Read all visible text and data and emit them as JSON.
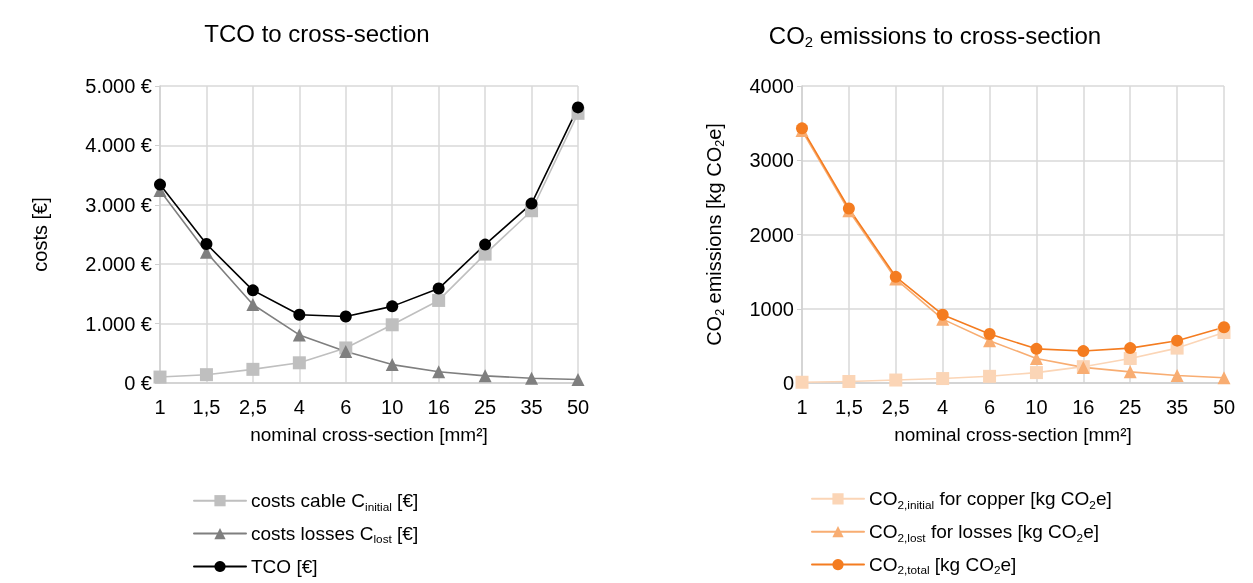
{
  "chart_data": [
    {
      "type": "line",
      "title": "TCO to cross-section",
      "xlabel": "nominal cross-section [mm²]",
      "ylabel": "costs [€]",
      "categories": [
        "1",
        "1,5",
        "2,5",
        "4",
        "6",
        "10",
        "16",
        "25",
        "35",
        "50"
      ],
      "series": [
        {
          "name": "costs cable C$_{initial}$ [€]",
          "color": "#bfbfbf",
          "marker": "square",
          "values": [
            100,
            140,
            230,
            340,
            590,
            980,
            1390,
            2170,
            2900,
            4540
          ]
        },
        {
          "name": "costs losses C$_{lost}$ [€]",
          "color": "#7f7f7f",
          "marker": "triangle",
          "values": [
            3240,
            2200,
            1320,
            810,
            530,
            310,
            190,
            120,
            80,
            60
          ]
        },
        {
          "name": "TCO [€]",
          "color": "#000000",
          "marker": "circle",
          "values": [
            3340,
            2340,
            1560,
            1150,
            1120,
            1290,
            1590,
            2330,
            3020,
            4640
          ]
        }
      ],
      "ylim": [
        0,
        5000
      ],
      "yticks": [
        {
          "value": 0,
          "label": "0 €"
        },
        {
          "value": 1000,
          "label": "1.000 €"
        },
        {
          "value": 2000,
          "label": "2.000 €"
        },
        {
          "value": 3000,
          "label": "3.000 €"
        },
        {
          "value": 4000,
          "label": "4.000 €"
        },
        {
          "value": 5000,
          "label": "5.000 €"
        }
      ],
      "grid": true,
      "legend": "bottom"
    },
    {
      "type": "line",
      "title": "CO$_{2}$ emissions to cross-section",
      "xlabel": "nominal cross-section [mm²]",
      "ylabel": "CO$_{2}$ emissions [kg CO$_{2}$e]",
      "categories": [
        "1",
        "1,5",
        "2,5",
        "4",
        "6",
        "10",
        "16",
        "25",
        "35",
        "50"
      ],
      "series": [
        {
          "name": "CO$_{2,initial}$ for copper [kg CO$_{2}$e]",
          "color": "#fbd5b6",
          "marker": "square",
          "values": [
            10,
            20,
            40,
            60,
            90,
            140,
            220,
            330,
            470,
            680
          ]
        },
        {
          "name": "CO$_{2,lost}$ for losses [kg CO$_{2}$e]",
          "color": "#f8ad72",
          "marker": "triangle",
          "values": [
            3400,
            2320,
            1400,
            860,
            570,
            330,
            210,
            150,
            100,
            70
          ]
        },
        {
          "name": "CO$_{2,total}$ [kg CO$_{2}$e]",
          "color": "#f47c20",
          "marker": "circle",
          "values": [
            3430,
            2350,
            1430,
            920,
            660,
            460,
            430,
            470,
            570,
            750
          ]
        }
      ],
      "ylim": [
        0,
        4000
      ],
      "yticks": [
        0,
        1000,
        2000,
        3000,
        4000
      ],
      "grid": true,
      "legend": "bottom"
    }
  ]
}
